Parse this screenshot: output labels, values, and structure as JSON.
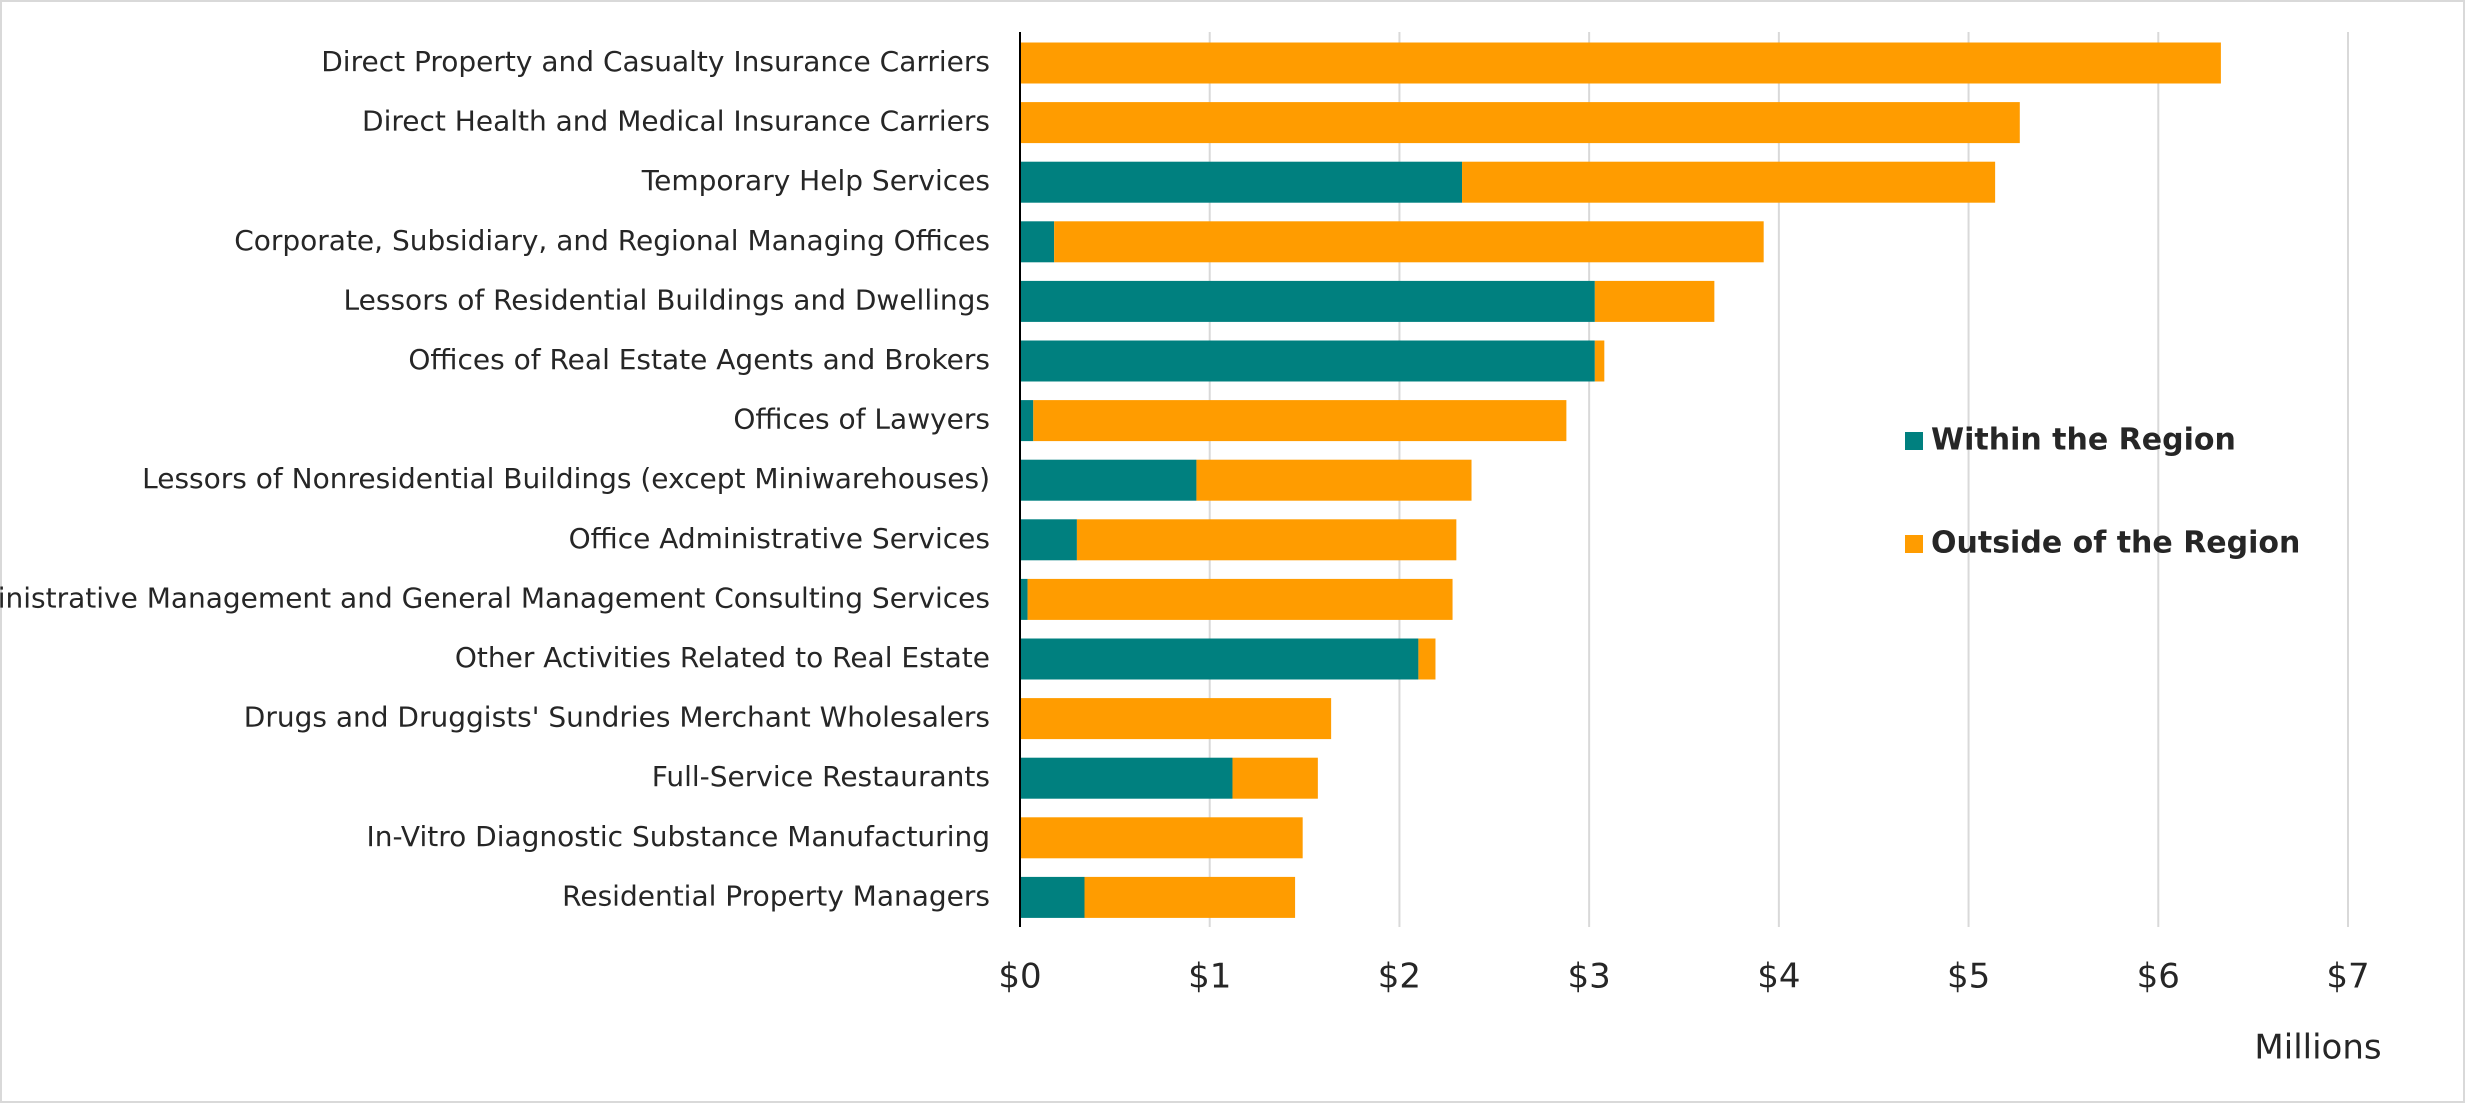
{
  "chart_data": {
    "type": "stacked_barh",
    "x_label": "Millions",
    "categories": [
      "Direct Property and Casualty Insurance Carriers",
      "Direct Health and Medical Insurance Carriers",
      "Temporary Help Services",
      "Corporate, Subsidiary, and Regional Managing Offices",
      "Lessors of Residential Buildings and Dwellings",
      "Offices of Real Estate Agents and Brokers",
      "Offices of Lawyers",
      "Lessors of Nonresidential Buildings (except Miniwarehouses)",
      "Office Administrative Services",
      "Administrative Management and General Management Consulting Services",
      "Other Activities Related to Real Estate",
      "Drugs and Druggists' Sundries Merchant Wholesalers",
      "Full-Service Restaurants",
      "In-Vitro Diagnostic Substance Manufacturing",
      "Residential Property Managers"
    ],
    "series": [
      {
        "name": "Within the Region",
        "color": "#00807f",
        "values": [
          0,
          0,
          2.33,
          0.18,
          3.03,
          3.03,
          0.07,
          0.93,
          0.3,
          0.04,
          2.1,
          0,
          1.12,
          0,
          0.34
        ]
      },
      {
        "name": "Outside of the Region",
        "color": "#ff9c00",
        "values": [
          6.33,
          5.27,
          2.81,
          3.74,
          0.63,
          0.05,
          2.81,
          1.45,
          2.0,
          2.24,
          0.09,
          1.64,
          0.45,
          1.49,
          1.11
        ]
      }
    ],
    "xlim": [
      0,
      7
    ],
    "xticks": [
      {
        "value": 0,
        "label": "$0"
      },
      {
        "value": 1,
        "label": "$1"
      },
      {
        "value": 2,
        "label": "$2"
      },
      {
        "value": 3,
        "label": "$3"
      },
      {
        "value": 4,
        "label": "$4"
      },
      {
        "value": 5,
        "label": "$5"
      },
      {
        "value": 6,
        "label": "$6"
      },
      {
        "value": 7,
        "label": "$7"
      }
    ],
    "grid": true,
    "legend": "right"
  }
}
